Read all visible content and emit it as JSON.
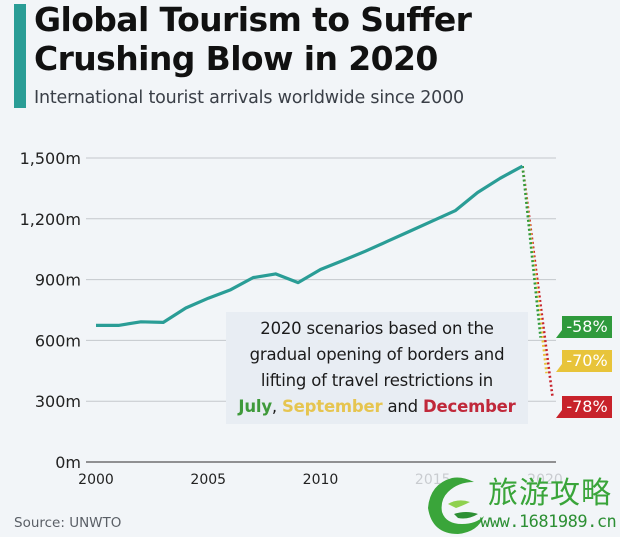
{
  "header": {
    "title": "Global Tourism to Suffer Crushing Blow in 2020",
    "subtitle": "International tourist arrivals worldwide since 2000",
    "accent_color": "#2a9d96"
  },
  "annotation": {
    "line1": "2020 scenarios based on the",
    "line2": "gradual opening of borders and",
    "line3": "lifting of travel restrictions in",
    "july": "July",
    "comma": ", ",
    "september": "September",
    "and": " and ",
    "december": "December"
  },
  "badges": {
    "july": {
      "label": "-58%",
      "color": "#2f9a3c"
    },
    "september": {
      "label": "-70%",
      "color": "#e8c43a"
    },
    "december": {
      "label": "-78%",
      "color": "#c8222b"
    }
  },
  "footer": {
    "source": "Source: UNWTO"
  },
  "watermark": {
    "text": "旅游攻略",
    "url": "www.1681989.cn"
  },
  "chart_data": {
    "type": "line",
    "title": "Global Tourism to Suffer Crushing Blow in 2020",
    "subtitle": "International tourist arrivals worldwide since 2000",
    "xlabel": "",
    "ylabel": "",
    "x_ticks": [
      "2000",
      "2005",
      "2010",
      "2015",
      "2020"
    ],
    "y_ticks": [
      "0m",
      "300m",
      "600m",
      "900m",
      "1,200m",
      "1,500m"
    ],
    "ylim": [
      0,
      1500
    ],
    "xlim": [
      2000,
      2020
    ],
    "grid": "horizontal",
    "x": [
      2000,
      2001,
      2002,
      2003,
      2004,
      2005,
      2006,
      2007,
      2008,
      2009,
      2010,
      2011,
      2012,
      2013,
      2014,
      2015,
      2016,
      2017,
      2018,
      2019
    ],
    "series": [
      {
        "name": "International tourist arrivals (m)",
        "color": "#2a9d96",
        "values": [
          674,
          674,
          692,
          689,
          760,
          808,
          850,
          910,
          928,
          885,
          950,
          994,
          1040,
          1090,
          1140,
          1190,
          1240,
          1330,
          1400,
          1460
        ]
      }
    ],
    "scenarios_2020": [
      {
        "name": "July",
        "change": "-58%",
        "value": 614,
        "color": "#2f9a3c"
      },
      {
        "name": "September",
        "change": "-70%",
        "value": 438,
        "color": "#e8c43a"
      },
      {
        "name": "December",
        "change": "-78%",
        "value": 321,
        "color": "#c8222b"
      }
    ],
    "annotation": "2020 scenarios based on the gradual opening of borders and lifting of travel restrictions in July, September and December",
    "source": "Source: UNWTO"
  }
}
